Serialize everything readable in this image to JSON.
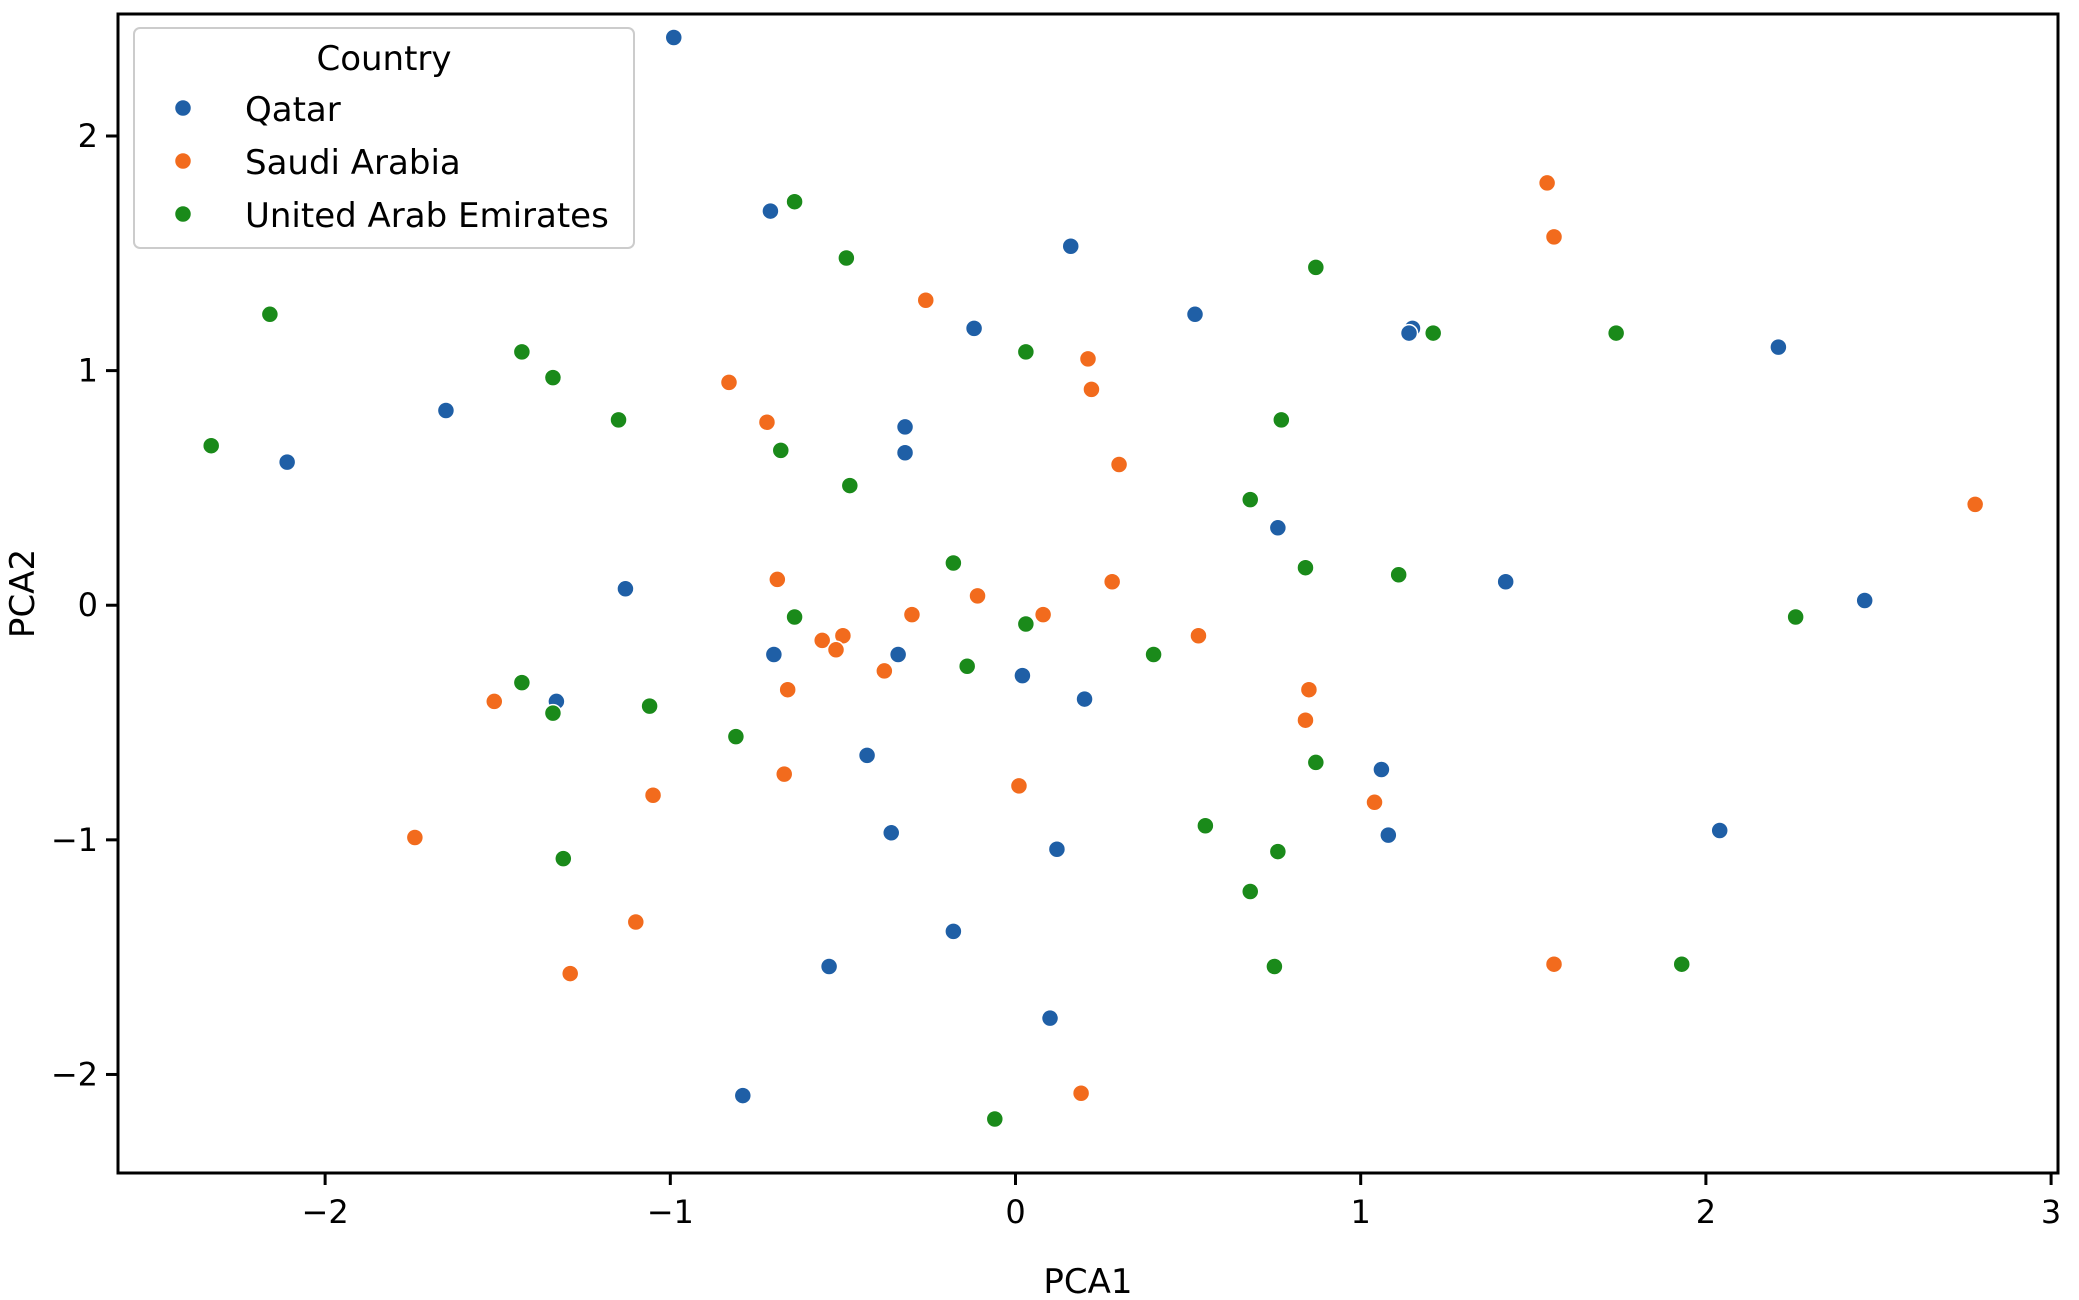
{
  "chart_data": {
    "type": "scatter",
    "xlabel": "PCA1",
    "ylabel": "PCA2",
    "xlim": [
      -2.6,
      3.02
    ],
    "ylim": [
      -2.42,
      2.52
    ],
    "xticks": [
      -2,
      -1,
      0,
      1,
      2,
      3
    ],
    "yticks": [
      -2,
      -1,
      0,
      1,
      2
    ],
    "grid": false,
    "legend": {
      "title": "Country",
      "placement": "top-left"
    },
    "series": [
      {
        "name": "Qatar",
        "color": "#1f5fa6",
        "points": [
          [
            -0.99,
            2.42
          ],
          [
            -0.71,
            1.68
          ],
          [
            0.16,
            1.53
          ],
          [
            -0.12,
            1.18
          ],
          [
            0.52,
            1.24
          ],
          [
            1.15,
            1.18
          ],
          [
            1.14,
            1.16
          ],
          [
            2.21,
            1.1
          ],
          [
            -1.65,
            0.83
          ],
          [
            -2.11,
            0.61
          ],
          [
            -0.32,
            0.76
          ],
          [
            -0.32,
            0.65
          ],
          [
            0.76,
            0.33
          ],
          [
            -1.13,
            0.07
          ],
          [
            1.42,
            0.1
          ],
          [
            2.46,
            0.02
          ],
          [
            -0.7,
            -0.21
          ],
          [
            -0.34,
            -0.21
          ],
          [
            0.02,
            -0.3
          ],
          [
            0.2,
            -0.4
          ],
          [
            -1.33,
            -0.41
          ],
          [
            -0.43,
            -0.64
          ],
          [
            1.06,
            -0.7
          ],
          [
            1.08,
            -0.98
          ],
          [
            2.04,
            -0.96
          ],
          [
            -0.36,
            -0.97
          ],
          [
            0.12,
            -1.04
          ],
          [
            -0.18,
            -1.39
          ],
          [
            -0.54,
            -1.54
          ],
          [
            0.1,
            -1.76
          ],
          [
            -0.79,
            -2.09
          ]
        ]
      },
      {
        "name": "Saudi Arabia",
        "color": "#f26b1d",
        "points": [
          [
            1.54,
            1.8
          ],
          [
            1.56,
            1.57
          ],
          [
            -0.26,
            1.3
          ],
          [
            0.21,
            1.05
          ],
          [
            0.22,
            0.92
          ],
          [
            -0.83,
            0.95
          ],
          [
            -0.72,
            0.78
          ],
          [
            0.3,
            0.6
          ],
          [
            2.78,
            0.43
          ],
          [
            -0.69,
            0.11
          ],
          [
            0.28,
            0.1
          ],
          [
            -0.11,
            0.04
          ],
          [
            -0.3,
            -0.04
          ],
          [
            0.08,
            -0.04
          ],
          [
            -0.5,
            -0.13
          ],
          [
            -0.56,
            -0.15
          ],
          [
            -0.52,
            -0.19
          ],
          [
            0.53,
            -0.13
          ],
          [
            -0.38,
            -0.28
          ],
          [
            -0.66,
            -0.36
          ],
          [
            0.85,
            -0.36
          ],
          [
            -1.51,
            -0.41
          ],
          [
            0.84,
            -0.49
          ],
          [
            -0.67,
            -0.72
          ],
          [
            0.01,
            -0.77
          ],
          [
            -1.05,
            -0.81
          ],
          [
            1.04,
            -0.84
          ],
          [
            -1.74,
            -0.99
          ],
          [
            -1.1,
            -1.35
          ],
          [
            -1.29,
            -1.57
          ],
          [
            1.56,
            -1.53
          ],
          [
            0.19,
            -2.08
          ]
        ]
      },
      {
        "name": "United Arab Emirates",
        "color": "#1a8a1a",
        "points": [
          [
            -0.64,
            1.72
          ],
          [
            -0.49,
            1.48
          ],
          [
            0.87,
            1.44
          ],
          [
            -2.16,
            1.24
          ],
          [
            0.03,
            1.08
          ],
          [
            -1.43,
            1.08
          ],
          [
            1.21,
            1.16
          ],
          [
            1.74,
            1.16
          ],
          [
            -1.34,
            0.97
          ],
          [
            -1.15,
            0.79
          ],
          [
            0.77,
            0.79
          ],
          [
            -0.68,
            0.66
          ],
          [
            -0.48,
            0.51
          ],
          [
            -2.33,
            0.68
          ],
          [
            0.68,
            0.45
          ],
          [
            -0.18,
            0.18
          ],
          [
            0.84,
            0.16
          ],
          [
            1.11,
            0.13
          ],
          [
            -0.64,
            -0.05
          ],
          [
            0.03,
            -0.08
          ],
          [
            2.26,
            -0.05
          ],
          [
            0.4,
            -0.21
          ],
          [
            -0.14,
            -0.26
          ],
          [
            -1.43,
            -0.33
          ],
          [
            -1.34,
            -0.46
          ],
          [
            -1.06,
            -0.43
          ],
          [
            -0.81,
            -0.56
          ],
          [
            0.87,
            -0.67
          ],
          [
            0.55,
            -0.94
          ],
          [
            0.76,
            -1.05
          ],
          [
            -1.31,
            -1.08
          ],
          [
            0.68,
            -1.22
          ],
          [
            0.75,
            -1.54
          ],
          [
            1.93,
            -1.53
          ],
          [
            -0.06,
            -2.19
          ]
        ]
      }
    ]
  }
}
